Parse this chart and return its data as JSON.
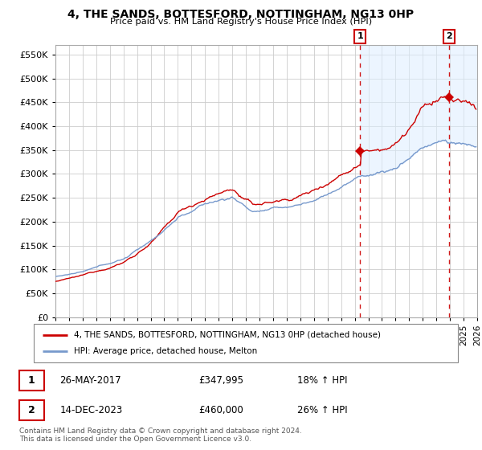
{
  "title": "4, THE SANDS, BOTTESFORD, NOTTINGHAM, NG13 0HP",
  "subtitle": "Price paid vs. HM Land Registry's House Price Index (HPI)",
  "legend_red": "4, THE SANDS, BOTTESFORD, NOTTINGHAM, NG13 0HP (detached house)",
  "legend_blue": "HPI: Average price, detached house, Melton",
  "annotation1_date": "26-MAY-2017",
  "annotation1_price": "£347,995",
  "annotation1_hpi": "18% ↑ HPI",
  "annotation1_value": 347995,
  "annotation1_year": 2017.4,
  "annotation2_date": "14-DEC-2023",
  "annotation2_price": "£460,000",
  "annotation2_hpi": "26% ↑ HPI",
  "annotation2_value": 460000,
  "annotation2_year": 2023.95,
  "red_color": "#cc0000",
  "blue_color": "#7799cc",
  "blue_fill_color": "#ddeeff",
  "dashed_color": "#cc0000",
  "grid_color": "#cccccc",
  "background_color": "#ffffff",
  "ylim": [
    0,
    570000
  ],
  "yticks": [
    0,
    50000,
    100000,
    150000,
    200000,
    250000,
    300000,
    350000,
    400000,
    450000,
    500000,
    550000
  ],
  "footer": "Contains HM Land Registry data © Crown copyright and database right 2024.\nThis data is licensed under the Open Government Licence v3.0.",
  "x_start_year": 1995,
  "x_end_year": 2026
}
